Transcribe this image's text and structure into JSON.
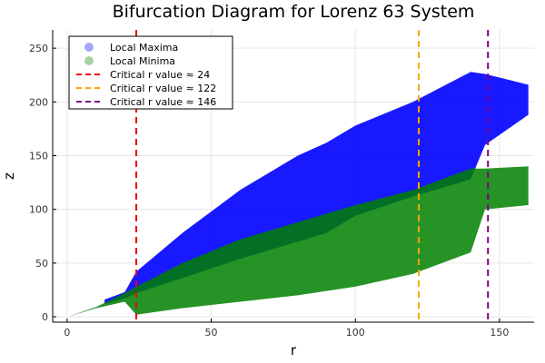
{
  "chart_data": {
    "type": "scatter",
    "title": "Bifurcation Diagram for Lorenz 63 System",
    "xlabel": "r",
    "ylabel": "z",
    "xlim": [
      -5,
      162
    ],
    "ylim": [
      -5,
      267
    ],
    "x_ticks": [
      0,
      50,
      100,
      150
    ],
    "y_ticks": [
      0,
      50,
      100,
      150,
      200,
      250
    ],
    "x_tick_labels": [
      "0",
      "50",
      "100",
      "150"
    ],
    "y_tick_labels": [
      "0",
      "50",
      "100",
      "150",
      "200",
      "250"
    ],
    "grid": true,
    "legend_position": "top-left",
    "series": [
      {
        "name": "Local Maxima",
        "color": "#0000ff",
        "bands": [
          {
            "r": 13,
            "low": 12,
            "high": 16
          },
          {
            "r": 20,
            "low": 17,
            "high": 23
          },
          {
            "r": 24,
            "low": 22,
            "high": 42
          },
          {
            "r": 40,
            "low": 36,
            "high": 78
          },
          {
            "r": 60,
            "low": 54,
            "high": 118
          },
          {
            "r": 80,
            "low": 70,
            "high": 150
          },
          {
            "r": 90,
            "low": 78,
            "high": 162
          },
          {
            "r": 100,
            "low": 94,
            "high": 178
          },
          {
            "r": 120,
            "low": 112,
            "high": 200
          },
          {
            "r": 140,
            "low": 128,
            "high": 228
          },
          {
            "r": 145,
            "low": 160,
            "high": 226
          },
          {
            "r": 160,
            "low": 188,
            "high": 216
          }
        ]
      },
      {
        "name": "Local Minima",
        "color": "#008000",
        "bands": [
          {
            "r": 0,
            "low": 0,
            "high": 0
          },
          {
            "r": 10,
            "low": 8,
            "high": 9
          },
          {
            "r": 20,
            "low": 14,
            "high": 22
          },
          {
            "r": 24,
            "low": 2,
            "high": 28
          },
          {
            "r": 40,
            "low": 8,
            "high": 50
          },
          {
            "r": 60,
            "low": 14,
            "high": 72
          },
          {
            "r": 80,
            "low": 20,
            "high": 88
          },
          {
            "r": 100,
            "low": 28,
            "high": 104
          },
          {
            "r": 120,
            "low": 40,
            "high": 118
          },
          {
            "r": 140,
            "low": 60,
            "high": 138
          },
          {
            "r": 145,
            "low": 100,
            "high": 138
          },
          {
            "r": 160,
            "low": 104,
            "high": 140
          }
        ]
      }
    ],
    "vlines": [
      {
        "name": "Critical r value ≈ 24",
        "x": 24,
        "color": "#e8000b"
      },
      {
        "name": "Critical r value ≈ 122",
        "x": 122,
        "color": "#ffa500"
      },
      {
        "name": "Critical r value ≈ 146",
        "x": 146,
        "color": "#800080"
      }
    ]
  }
}
